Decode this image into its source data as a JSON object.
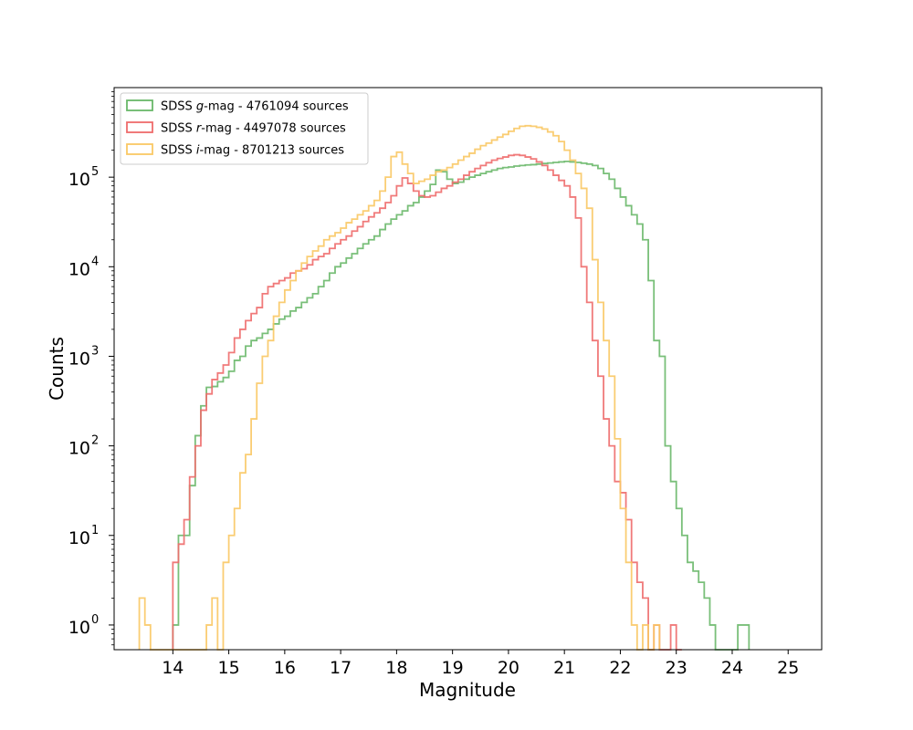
{
  "chart_data": {
    "type": "histogram",
    "xlabel": "Magnitude",
    "ylabel": "Counts",
    "xlim": [
      12.95,
      25.6
    ],
    "ylim": [
      0.53,
      1000000
    ],
    "yscale": "log",
    "grid": false,
    "legend_placement": "top-left",
    "x_ticks": [
      14,
      15,
      16,
      17,
      18,
      19,
      20,
      21,
      22,
      23,
      24,
      25
    ],
    "y_ticks": [
      {
        "value": 1,
        "base": "10",
        "exp": "0"
      },
      {
        "value": 10,
        "base": "10",
        "exp": "1"
      },
      {
        "value": 100,
        "base": "10",
        "exp": "2"
      },
      {
        "value": 1000,
        "base": "10",
        "exp": "3"
      },
      {
        "value": 10000,
        "base": "10",
        "exp": "4"
      },
      {
        "value": 100000,
        "base": "10",
        "exp": "5"
      }
    ],
    "bin_width": 0.1,
    "series": [
      {
        "prefix": "SDSS ",
        "band": "g",
        "suffix": "-mag - 4761094 sources",
        "color": "#6ab86a",
        "start": 14.0,
        "counts": [
          1,
          10,
          10,
          36,
          130,
          280,
          450,
          460,
          520,
          580,
          680,
          900,
          1000,
          1300,
          1500,
          1600,
          1800,
          2000,
          2300,
          2600,
          2800,
          3200,
          3500,
          4000,
          4500,
          5000,
          6000,
          7000,
          8500,
          10000,
          11000,
          12500,
          14000,
          16000,
          18000,
          20000,
          22000,
          26000,
          30000,
          34000,
          38000,
          42000,
          48000,
          52000,
          60000,
          70000,
          83000,
          120000,
          115000,
          95000,
          85000,
          88000,
          95000,
          100000,
          105000,
          110000,
          115000,
          120000,
          125000,
          128000,
          130000,
          133000,
          135000,
          137000,
          138000,
          140000,
          142000,
          144000,
          146000,
          148000,
          150000,
          148000,
          146000,
          143000,
          140000,
          135000,
          125000,
          110000,
          95000,
          75000,
          60000,
          48000,
          38000,
          30000,
          20000,
          7000,
          1500,
          1000,
          100,
          40,
          20,
          10,
          5,
          4,
          3,
          2,
          1,
          0.3,
          0.3,
          0.3,
          0.3,
          1,
          1
        ]
      },
      {
        "prefix": "SDSS ",
        "band": "r",
        "suffix": "-mag - 4497078 sources",
        "color": "#ee6b6b",
        "start": 14.0,
        "counts": [
          5,
          8,
          15,
          45,
          100,
          250,
          380,
          550,
          650,
          800,
          1100,
          1600,
          2000,
          2500,
          3000,
          3500,
          5000,
          6000,
          6500,
          7000,
          7500,
          8500,
          9000,
          9500,
          10500,
          12000,
          13000,
          14000,
          16000,
          18000,
          20000,
          22000,
          25000,
          28000,
          32000,
          36000,
          40000,
          45000,
          52000,
          62000,
          80000,
          98000,
          85000,
          70000,
          62000,
          60000,
          62000,
          68000,
          75000,
          80000,
          88000,
          95000,
          105000,
          115000,
          125000,
          135000,
          145000,
          155000,
          162000,
          168000,
          175000,
          178000,
          175000,
          168000,
          160000,
          148000,
          135000,
          120000,
          105000,
          92000,
          80000,
          60000,
          35000,
          10000,
          4000,
          1500,
          600,
          200,
          100,
          40,
          30,
          15,
          5,
          3,
          2,
          0.3,
          1,
          0.3,
          0.3,
          1,
          0.3
        ]
      },
      {
        "prefix": "SDSS ",
        "band": "i",
        "suffix": "-mag - 8701213 sources",
        "color": "#fac864",
        "start": 13.4,
        "counts": [
          2,
          1,
          0.3,
          0.3,
          0.3,
          0.3,
          0.3,
          0.3,
          0.3,
          0.3,
          0.3,
          0.3,
          1,
          2,
          0.3,
          5,
          10,
          20,
          50,
          80,
          200,
          500,
          1000,
          1500,
          2800,
          4000,
          5500,
          7000,
          9000,
          11000,
          13000,
          15000,
          17000,
          20000,
          22000,
          24000,
          27000,
          31000,
          34000,
          38000,
          42000,
          48000,
          55000,
          70000,
          100000,
          170000,
          190000,
          140000,
          110000,
          85000,
          90000,
          95000,
          105000,
          115000,
          120000,
          128000,
          140000,
          155000,
          170000,
          185000,
          205000,
          225000,
          240000,
          260000,
          280000,
          300000,
          325000,
          350000,
          370000,
          375000,
          370000,
          360000,
          345000,
          320000,
          290000,
          250000,
          200000,
          155000,
          110000,
          75000,
          45000,
          12000,
          4000,
          1500,
          600,
          120,
          20,
          5,
          1,
          0.3,
          1,
          0.3,
          1
        ]
      }
    ]
  }
}
